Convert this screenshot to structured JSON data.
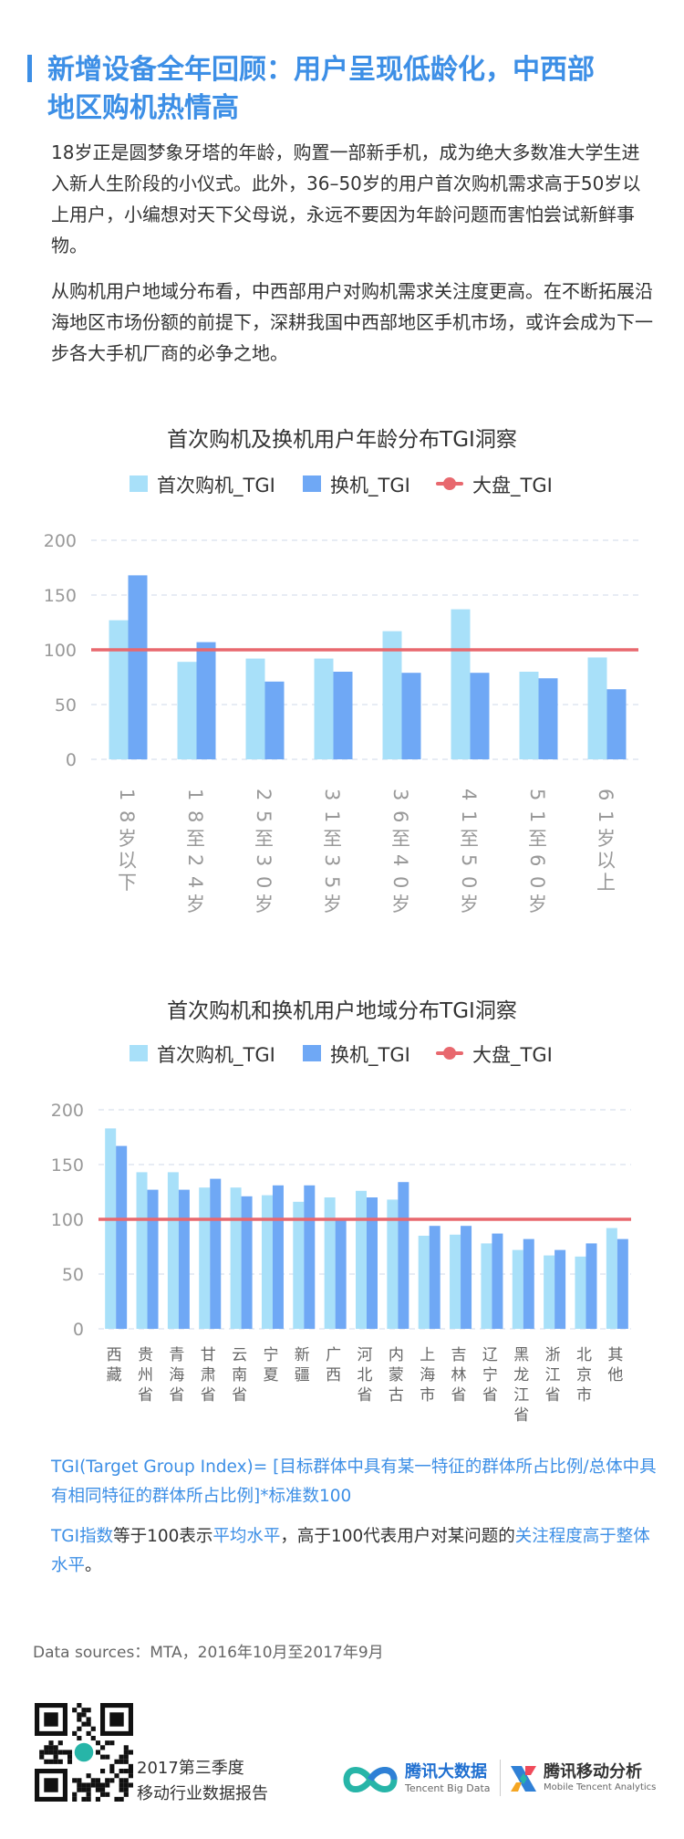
{
  "title": {
    "line1": "新增设备全年回顾：用户呈现低龄化，中西部",
    "line2": "地区购机热情高"
  },
  "paragraphs": [
    "18岁正是圆梦象牙塔的年龄，购置一部新手机，成为绝大多数准大学生进入新人生阶段的小仪式。此外，36–50岁的用户首次购机需求高于50岁以上用户，小编想对天下父母说，永远不要因为年龄问题而害怕尝试新鲜事物。",
    "从购机用户地域分布看，中西部用户对购机需求关注度更高。在不断拓展沿海地区市场份额的前提下，深耕我国中西部地区手机市场，或许会成为下一步各大手机厂商的必争之地。"
  ],
  "colors": {
    "accent": "#3d8fe6",
    "first_buy": "#a8e0f9",
    "replace": "#6fa8f5",
    "baseline": "#e8686e"
  },
  "chart_data": [
    {
      "type": "bar",
      "title": "首次购机及换机用户年龄分布TGI洞察",
      "categories": [
        "18岁以下",
        "18至24岁",
        "25至30岁",
        "31至35岁",
        "36至40岁",
        "41至50岁",
        "51至60岁",
        "61岁以上"
      ],
      "series": [
        {
          "name": "首次购机_TGI",
          "values": [
            127,
            89,
            92,
            92,
            117,
            137,
            80,
            93
          ]
        },
        {
          "name": "换机_TGI",
          "values": [
            168,
            107,
            71,
            80,
            79,
            79,
            74,
            64
          ]
        }
      ],
      "baseline": {
        "name": "大盘_TGI",
        "value": 100
      },
      "yticks": [
        0,
        50,
        100,
        150,
        200
      ],
      "ylim": [
        0,
        200
      ],
      "legend": "top",
      "grid": true
    },
    {
      "type": "bar",
      "title": "首次购机和换机用户地域分布TGI洞察",
      "categories": [
        "西藏",
        "贵州省",
        "青海省",
        "甘肃省",
        "云南省",
        "宁夏",
        "新疆",
        "广西",
        "河北省",
        "内蒙古",
        "上海市",
        "吉林省",
        "辽宁省",
        "黑龙江省",
        "浙江省",
        "北京市",
        "其他"
      ],
      "series": [
        {
          "name": "首次购机_TGI",
          "values": [
            183,
            143,
            143,
            129,
            129,
            122,
            116,
            120,
            126,
            118,
            85,
            86,
            78,
            72,
            67,
            66,
            92
          ]
        },
        {
          "name": "换机_TGI",
          "values": [
            167,
            127,
            127,
            137,
            121,
            131,
            131,
            99,
            120,
            134,
            94,
            94,
            87,
            82,
            72,
            78,
            82
          ]
        }
      ],
      "baseline": {
        "name": "大盘_TGI",
        "value": 100
      },
      "yticks": [
        0,
        50,
        100,
        150,
        200
      ],
      "ylim": [
        0,
        200
      ],
      "legend": "top",
      "grid": true
    }
  ],
  "footnote1": "TGI(Target Group Index)= [目标群体中具有某一特征的群体所占比例/总体中具有相同特征的群体所占比例]*标准数100",
  "footnote2": {
    "parts": [
      "TGI指数",
      "等于100表示",
      "平均水平",
      "，高于100代表用户对某问题的",
      "关注程度高于整体水平",
      "。"
    ]
  },
  "source": "Data sources：MTA，2016年10月至2017年9月",
  "report": {
    "line1": "2017第三季度",
    "line2": "移动行业数据报告"
  },
  "logos": {
    "tencent_big_data": {
      "name": "腾讯大数据",
      "sub": "Tencent Big Data"
    },
    "tencent_analytics": {
      "name": "腾讯移动分析",
      "sub": "Mobile Tencent Analytics"
    }
  }
}
